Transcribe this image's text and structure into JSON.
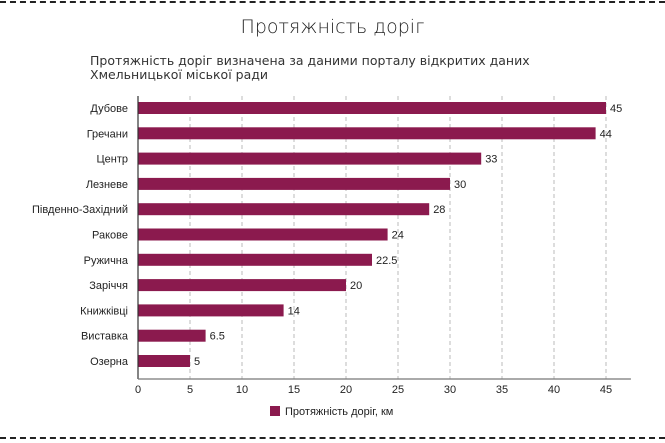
{
  "chart_data": {
    "type": "bar",
    "orientation": "horizontal",
    "title": "Протяжність доріг",
    "subtitle": "Протяжність доріг визначена за даними порталу відкритих даних Хмельницької міської ради",
    "categories": [
      "Дубове",
      "Гречани",
      "Центр",
      "Лезневе",
      "Південно-Західний",
      "Ракове",
      "Ружична",
      "Заріччя",
      "Книжківці",
      "Виставка",
      "Озерна"
    ],
    "series": [
      {
        "name": "Протяжність доріг, км",
        "values": [
          45,
          44,
          33,
          30,
          28,
          24,
          22.5,
          20,
          14,
          6.5,
          5
        ]
      }
    ],
    "data_labels": [
      "45",
      "44",
      "33",
      "30",
      "28",
      "24",
      "22.5",
      "20",
      "14",
      "6.5",
      "5"
    ],
    "xticks": [
      "0",
      "5",
      "10",
      "15",
      "20",
      "25",
      "30",
      "35",
      "40",
      "45"
    ],
    "xlim": [
      0,
      47.3
    ],
    "grid": "vertical dashed",
    "legend": "bottom",
    "colors": {
      "bar": "#8B1A4E"
    }
  }
}
